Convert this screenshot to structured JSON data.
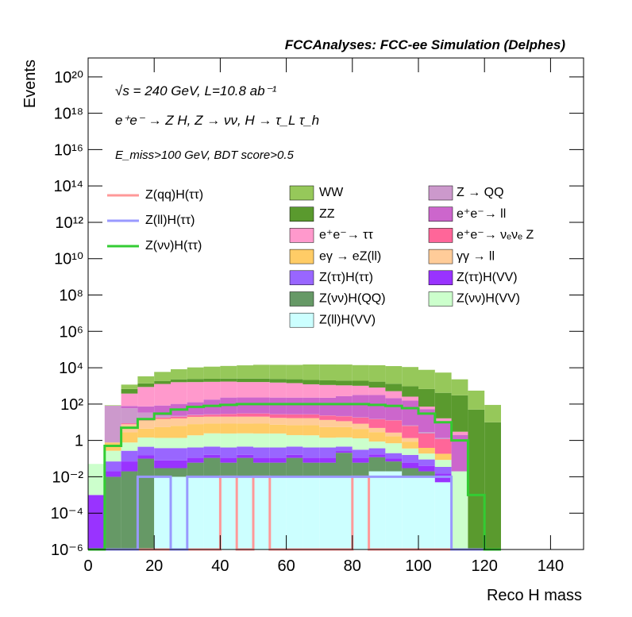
{
  "chart_data": {
    "type": "histogram",
    "stacked": true,
    "title": "FCCAnalyses: FCC-ee Simulation (Delphes)",
    "annotations": [
      "√s = 240 GeV, L=10.8 ab⁻¹",
      "e⁺e⁻ → Z H, Z → νν, H → τ_L τ_h",
      "E_miss>100 GeV, BDT score>0.5"
    ],
    "xlabel": "Reco H mass",
    "ylabel": "Events",
    "log_y": true,
    "xlim": [
      0,
      150
    ],
    "ylim": [
      1e-06,
      1.1e+21
    ],
    "xticks": [
      0,
      20,
      40,
      60,
      80,
      100,
      120,
      140
    ],
    "yticks": [
      {
        "value": 1e-06,
        "label": "10⁻⁶"
      },
      {
        "value": 0.0001,
        "label": "10⁻⁴"
      },
      {
        "value": 0.01,
        "label": "10⁻²"
      },
      1,
      {
        "value": 100,
        "label": "10²"
      },
      {
        "value": 10000,
        "label": "10⁴"
      },
      {
        "value": 1000000,
        "label": "10⁶"
      },
      {
        "value": 100000000,
        "label": "10⁸"
      },
      {
        "value": 10000000000,
        "label": "10¹⁰"
      },
      {
        "value": 1000000000000,
        "label": "10¹²"
      },
      {
        "value": 100000000000000,
        "label": "10¹⁴"
      },
      {
        "value": 10000000000000000,
        "label": "10¹⁶"
      },
      {
        "value": 1000000000000000000,
        "label": "10¹⁸"
      },
      {
        "value": 100000000000000000000,
        "label": "10²⁰"
      }
    ],
    "bins": [
      0,
      5,
      10,
      15,
      20,
      25,
      30,
      35,
      40,
      45,
      50,
      55,
      60,
      65,
      70,
      75,
      80,
      85,
      90,
      95,
      100,
      105,
      110,
      115,
      120,
      125
    ],
    "series": [
      {
        "name": "WW",
        "color": "#96c85a",
        "values": [
          0,
          5,
          500,
          2000,
          4000,
          6000,
          8000,
          9000,
          10000,
          11000,
          12000,
          12000,
          12000,
          13000,
          13000,
          13000,
          12000,
          12000,
          11000,
          10000,
          7000,
          5000,
          2000,
          500,
          80
        ]
      },
      {
        "name": "ZZ",
        "color": "#5a9a2e",
        "values": [
          0,
          0,
          300,
          500,
          600,
          700,
          800,
          800,
          800,
          900,
          900,
          900,
          900,
          900,
          900,
          900,
          900,
          900,
          800,
          700,
          600,
          400,
          300,
          50,
          10
        ]
      },
      {
        "name": "e⁺e⁻→ ττ",
        "color": "#ff99cc",
        "values": [
          0,
          0,
          300,
          800,
          1200,
          1500,
          1500,
          1500,
          1500,
          1400,
          1400,
          1300,
          1200,
          1000,
          900,
          800,
          700,
          500,
          300,
          100,
          20,
          5,
          1,
          0,
          0
        ]
      },
      {
        "name": "eγ → eZ(ll)",
        "color": "#ffcc66",
        "values": [
          0,
          0.5,
          2,
          3,
          4,
          5,
          6,
          6,
          6,
          6,
          6,
          5,
          5,
          5,
          4,
          4,
          3,
          2,
          1,
          0.5,
          0.2,
          0.1,
          0,
          0,
          0
        ]
      },
      {
        "name": "Z(ττ)H(ττ)",
        "color": "#9966ff",
        "values": [
          0,
          0.05,
          0.2,
          0.3,
          0.3,
          0.3,
          0.3,
          0.3,
          0.3,
          0.3,
          0.3,
          0.3,
          0.3,
          0.3,
          0.3,
          0.2,
          0.2,
          0.2,
          0.1,
          0.1,
          0.05,
          0.02,
          0,
          0,
          0
        ]
      },
      {
        "name": "Z(νν)H(QQ)",
        "color": "#669966",
        "values": [
          0,
          0.01,
          0.02,
          0.1,
          0.02,
          0.02,
          0.05,
          0.1,
          0.05,
          0.1,
          0.05,
          0.05,
          0.1,
          0.05,
          0.05,
          0.2,
          0.05,
          0.1,
          0.05,
          0.02,
          0.01,
          0,
          0,
          0,
          0
        ]
      },
      {
        "name": "Z(ll)H(VV)",
        "color": "#ccffff",
        "values": [
          0,
          0,
          0,
          0,
          0.01,
          0.01,
          0.01,
          0.01,
          0.01,
          0.01,
          0.01,
          0.01,
          0.01,
          0.01,
          0.01,
          0.01,
          0.01,
          0.02,
          0.02,
          0.01,
          0.01,
          0.005,
          0,
          0,
          0
        ]
      },
      {
        "name": "Z → QQ",
        "color": "#cc99cc",
        "values": [
          0,
          80,
          50,
          20,
          5,
          2,
          1,
          1,
          0.5,
          0.5,
          0.5,
          0.5,
          0.5,
          0.5,
          0.5,
          0.5,
          0.5,
          0.5,
          0.5,
          0.5,
          0.5,
          0.2,
          0,
          0,
          0
        ]
      },
      {
        "name": "e⁺e⁻→ ll",
        "color": "#cc66cc",
        "values": [
          0,
          0,
          20,
          40,
          60,
          80,
          100,
          150,
          200,
          200,
          200,
          200,
          200,
          200,
          200,
          250,
          300,
          300,
          200,
          150,
          50,
          10,
          2,
          0,
          0
        ]
      },
      {
        "name": "e⁺e⁻→ νₑνₑ Z",
        "color": "#ff6699",
        "values": [
          0,
          0,
          1,
          2,
          3,
          4,
          5,
          6,
          8,
          10,
          10,
          10,
          10,
          10,
          10,
          10,
          10,
          10,
          10,
          5,
          2,
          1,
          0,
          0,
          0
        ]
      },
      {
        "name": "γγ → ll",
        "color": "#ffcc99",
        "values": [
          0,
          0,
          5,
          8,
          10,
          10,
          12,
          12,
          12,
          12,
          12,
          10,
          10,
          10,
          8,
          6,
          4,
          2,
          1,
          0.5,
          0,
          0,
          0,
          0,
          0
        ]
      },
      {
        "name": "Z(ττ)H(VV)",
        "color": "#9933ff",
        "values": [
          0.001,
          0.01,
          0.05,
          0.05,
          0.05,
          0.05,
          0.05,
          0.05,
          0.05,
          0.05,
          0.05,
          0.05,
          0.05,
          0.05,
          0.05,
          0.05,
          0.05,
          0.05,
          0.03,
          0.03,
          0.02,
          0.01,
          0,
          0,
          0
        ]
      },
      {
        "name": "Z(νν)H(VV)",
        "color": "#ccffcc",
        "values": [
          0.05,
          0.2,
          0.5,
          1,
          1,
          1,
          1.5,
          2,
          2,
          2,
          2,
          2,
          1.5,
          1.5,
          1,
          1,
          1,
          0.5,
          0.5,
          0.2,
          0.1,
          0.05,
          0.02,
          0,
          0
        ]
      }
    ],
    "line_series": [
      {
        "name": "Z(qq)H(ττ)",
        "color": "#ff9999",
        "values": [
          0,
          0,
          0,
          0,
          0,
          0,
          0,
          0,
          0.01,
          0,
          0.01,
          0,
          0,
          0,
          0,
          0,
          0.01,
          0,
          0,
          0,
          0,
          0,
          0,
          0,
          0
        ]
      },
      {
        "name": "Z(ll)H(ττ)",
        "color": "#9999ff",
        "values": [
          0,
          0,
          0,
          0.01,
          0.01,
          0,
          0.01,
          0.01,
          0.01,
          0.01,
          0.01,
          0.01,
          0.01,
          0.01,
          0.01,
          0.01,
          0.01,
          0.01,
          0.01,
          0.01,
          0.01,
          0.01,
          0,
          0,
          0
        ]
      },
      {
        "name": "Z(νν)H(ττ)",
        "color": "#33cc33",
        "values": [
          0,
          0.5,
          5,
          15,
          30,
          50,
          70,
          80,
          90,
          100,
          100,
          100,
          100,
          100,
          100,
          100,
          100,
          90,
          80,
          60,
          30,
          10,
          1,
          0.001,
          0
        ]
      }
    ]
  }
}
